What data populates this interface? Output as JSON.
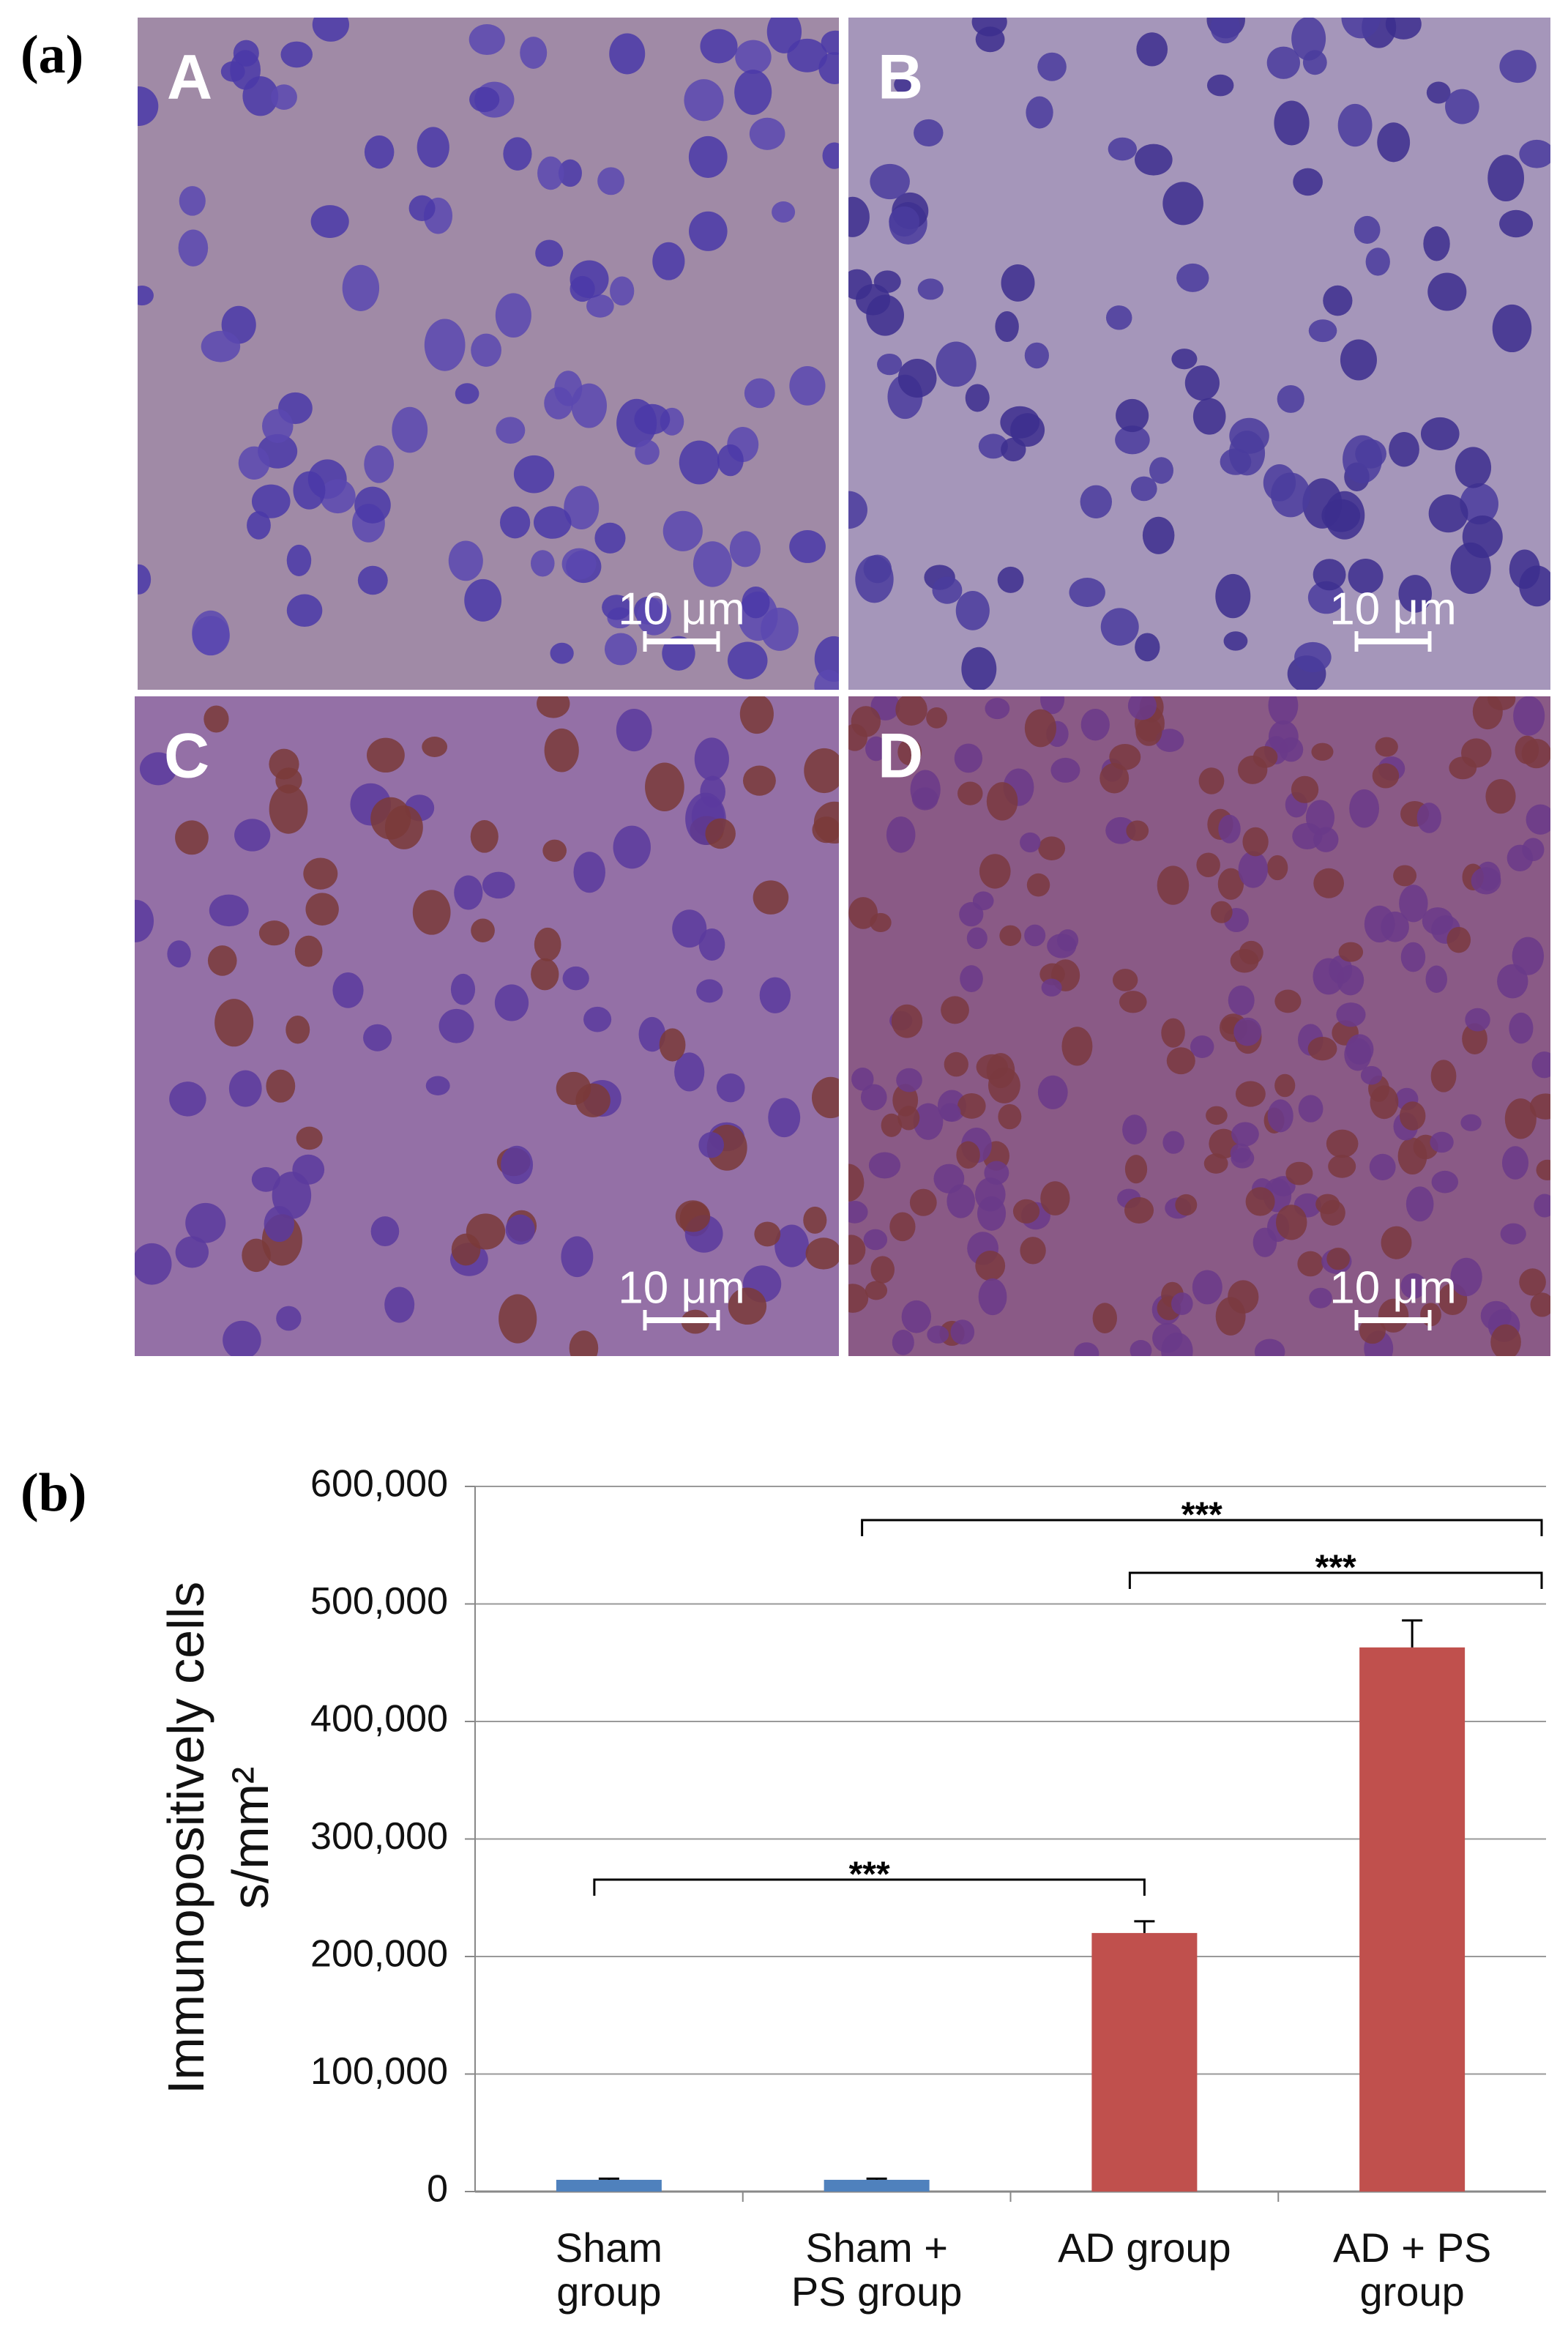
{
  "figure": {
    "panel_label": "(a)",
    "panels": [
      {
        "label": "A",
        "scale_bar": "10 μm"
      },
      {
        "label": "B",
        "scale_bar": "10 μm"
      },
      {
        "label": "C",
        "scale_bar": "10 μm"
      },
      {
        "label": "D",
        "scale_bar": "10 μm"
      }
    ]
  },
  "chart_data": {
    "type": "bar",
    "panel_label": "(b)",
    "y_label": [
      "Immunopositively cells",
      "s/mm²"
    ],
    "categories": [
      "Sham\ngroup",
      "Sham +\nPS group",
      "AD group",
      "AD + PS\ngroup"
    ],
    "values": [
      10000,
      10000,
      220000,
      463000
    ],
    "errors": [
      1000,
      1000,
      10000,
      23000
    ],
    "colors": [
      "#4f81bd",
      "#4f81bd",
      "#c0504d",
      "#c0504d"
    ],
    "ylim": [
      0,
      600000
    ],
    "yticks": [
      0,
      {
        "value": 100000,
        "label": "100,000"
      },
      {
        "value": 200000,
        "label": "200,000"
      },
      {
        "value": 300000,
        "label": "300,000"
      },
      {
        "value": 400000,
        "label": "400,000"
      },
      {
        "value": 500000,
        "label": "500,000"
      },
      {
        "value": 600000,
        "label": "600,000"
      }
    ],
    "grid": true,
    "significance": [
      {
        "label": "***",
        "between": [
          1,
          3
        ]
      },
      {
        "label": "***",
        "between": [
          2,
          3
        ]
      },
      {
        "label": "***",
        "between": [
          0,
          2
        ]
      }
    ]
  }
}
